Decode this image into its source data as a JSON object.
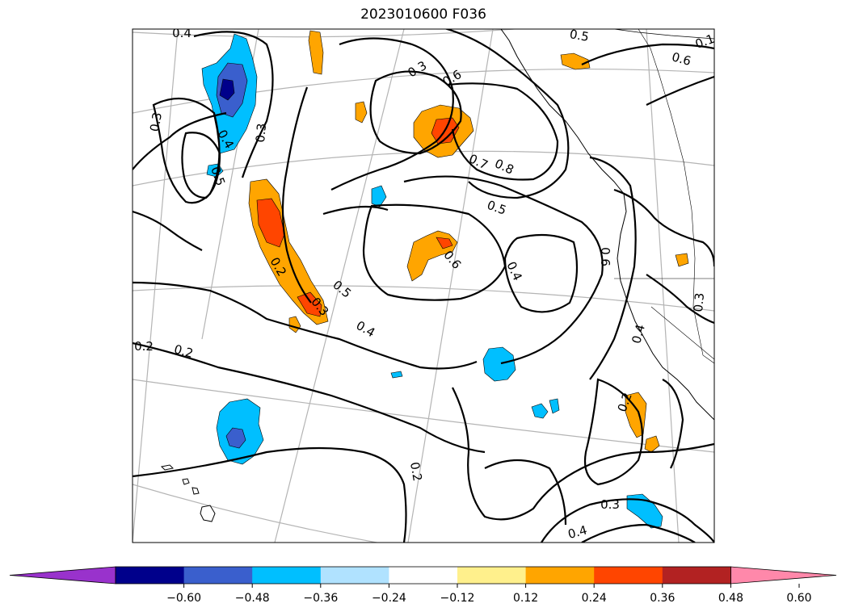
{
  "title": "2023010600 F036",
  "contour_labels": [
    "0.4",
    "0.3",
    "0.3",
    "0.4",
    "0.5",
    "0.2",
    "0.3",
    "0.6",
    "0.7",
    "0.8",
    "0.5",
    "0.6",
    "0.5",
    "0.4",
    "0.4",
    "0.2",
    "0.2",
    "0.3",
    "0.5",
    "0.6",
    "0.4",
    "0.2",
    "0.2",
    "0.3",
    "0.4",
    "0.3",
    "0.6",
    "0.1"
  ],
  "colorbar": {
    "colors": [
      "#9932cc",
      "#00008b",
      "#3a5fcd",
      "#00bfff",
      "#b0e2ff",
      "#ffffff",
      "#fff08c",
      "#ffa500",
      "#ff4500",
      "#b22222",
      "#ff88aa"
    ],
    "tick_labels": [
      "−0.60",
      "−0.48",
      "−0.36",
      "−0.24",
      "−0.12",
      "0.12",
      "0.24",
      "0.36",
      "0.48",
      "0.60"
    ]
  }
}
